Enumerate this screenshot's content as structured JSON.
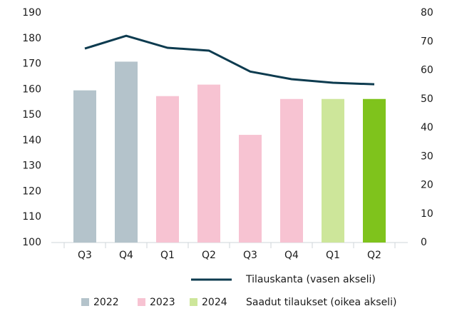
{
  "chart_data": {
    "type": "bar_line",
    "categories": [
      "Q3",
      "Q4",
      "Q1",
      "Q2",
      "Q3",
      "Q4",
      "Q1",
      "Q2"
    ],
    "series": [
      {
        "name": "Tilauskanta (vasen akseli)",
        "type": "line",
        "color": "#0d3b4f",
        "axis": "y",
        "values": [
          176,
          181,
          176.3,
          175.2,
          167,
          164,
          162.6,
          162
        ]
      },
      {
        "name": "Saadut tilaukset (oikea akseli)",
        "type": "bar",
        "axis": "y2",
        "colors": [
          "#b4c3cb",
          "#b4c3cb",
          "#f7c3d2",
          "#f7c3d2",
          "#f7c3d2",
          "#f7c3d2",
          "#cde69a",
          "#7fc31c"
        ],
        "values": [
          53,
          63,
          51,
          55,
          37.5,
          50,
          50,
          50
        ]
      }
    ],
    "year_legend": [
      {
        "name": "2022",
        "color": "#b4c3cb"
      },
      {
        "name": "2023",
        "color": "#f7c3d2"
      },
      {
        "name": "2024",
        "color": "#cde69a"
      }
    ],
    "ylim": [
      100,
      190
    ],
    "yticks": [
      100,
      110,
      120,
      130,
      140,
      150,
      160,
      170,
      180,
      190
    ],
    "y2lim": [
      0,
      80
    ],
    "y2ticks": [
      0,
      10,
      20,
      30,
      40,
      50,
      60,
      70,
      80
    ]
  }
}
